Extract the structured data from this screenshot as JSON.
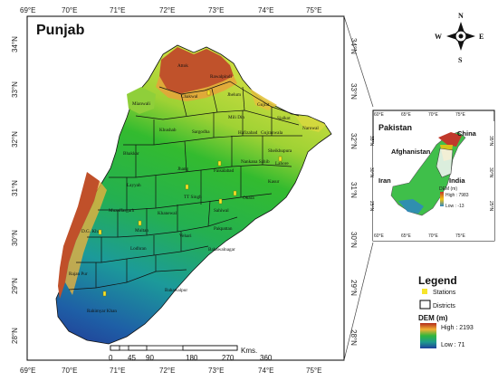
{
  "map": {
    "title": "Punjab",
    "x_ticks": [
      "69°E",
      "70°E",
      "71°E",
      "72°E",
      "73°E",
      "74°E",
      "75°E"
    ],
    "y_ticks": [
      "34°N",
      "33°N",
      "32°N",
      "31°N",
      "30°N",
      "29°N",
      "28°N"
    ],
    "districts": [
      "Attok",
      "Rawalpindi",
      "Chakwal",
      "Jhelum",
      "Gujrat",
      "Sialkot",
      "Narowal",
      "Mianwali",
      "Khushab",
      "Sargodha",
      "Mili Din",
      "Hafizabad",
      "Gujranwala",
      "Sheikhupura",
      "Lahore",
      "Bhakkar",
      "Jhang",
      "Faisalabad",
      "Nankana Sahib",
      "Kasur",
      "Layyah",
      "TT Singh",
      "Okara",
      "Sahiwal",
      "Muzaffargarh",
      "Khanewal",
      "Pakpattan",
      "Multan",
      "Vehari",
      "D.G. Khan",
      "Lodhran",
      "Bahawalnagar",
      "Rajan Pur",
      "Bahawalpur",
      "Rahimyar Khan"
    ],
    "colors": {
      "high": "#b22a1a",
      "mid_high": "#f2b134",
      "mid": "#2fb53c",
      "low_mid": "#1f9b8e",
      "low": "#1f3f9a"
    }
  },
  "scale_bar": {
    "unit": "Kms.",
    "labels": [
      "0",
      "45",
      "90",
      "180",
      "270",
      "360"
    ]
  },
  "compass": {
    "n": "N",
    "s": "S",
    "e": "E",
    "w": "W"
  },
  "inset": {
    "title": "Pakistan",
    "countries": [
      "China",
      "Afghanistan",
      "India",
      "Iran"
    ],
    "x_ticks": [
      "60°E",
      "65°E",
      "70°E",
      "75°E"
    ],
    "top_x_ticks": [
      "60°E",
      "65°E",
      "70°E",
      "75°E"
    ],
    "y_ticks": [
      "35°N",
      "30°N",
      "25°N"
    ],
    "dem_title": "DEM (m)",
    "dem_high": "High : 7983",
    "dem_low": "Low : -13"
  },
  "legend": {
    "title": "Legend",
    "stations": "Stations",
    "districts": "Districts",
    "dem_title": "DEM (m)",
    "high": "High : 2193",
    "low": "Low : 71"
  }
}
